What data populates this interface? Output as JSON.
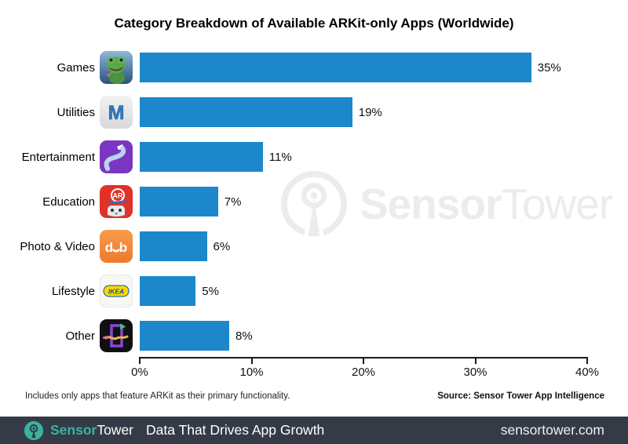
{
  "title": "Category Breakdown of Available ARKit-only Apps (Worldwide)",
  "chart_data": {
    "type": "bar",
    "orientation": "horizontal",
    "title": "Category Breakdown of Available ARKit-only Apps (Worldwide)",
    "categories": [
      "Games",
      "Utilities",
      "Entertainment",
      "Education",
      "Photo & Video",
      "Lifestyle",
      "Other"
    ],
    "values": [
      35,
      19,
      11,
      7,
      6,
      5,
      8
    ],
    "value_labels": [
      "35%",
      "19%",
      "11%",
      "7%",
      "6%",
      "5%",
      "8%"
    ],
    "icons": [
      "games-app-icon",
      "utilities-app-icon",
      "entertainment-app-icon",
      "education-app-icon",
      "photo-video-app-icon",
      "lifestyle-app-icon",
      "other-app-icon"
    ],
    "x_ticks": [
      "0%",
      "10%",
      "20%",
      "30%",
      "40%"
    ],
    "x_tick_values": [
      0,
      10,
      20,
      30,
      40
    ],
    "xlim": [
      0,
      40
    ],
    "bar_color": "#1d87cb",
    "grid": false,
    "legend": "none"
  },
  "watermark": {
    "brand_bold": "Sensor",
    "brand_light": "Tower"
  },
  "footnote": "Includes only apps that feature ARKit as their primary functionality.",
  "source": "Source: Sensor Tower App Intelligence",
  "footer_bar": {
    "brand_bold": "Sensor",
    "brand_light": "Tower",
    "tagline": "Data That Drives App Growth",
    "website": "sensortower.com",
    "bg_color": "#353b46",
    "accent_color": "#3ab3a0"
  }
}
